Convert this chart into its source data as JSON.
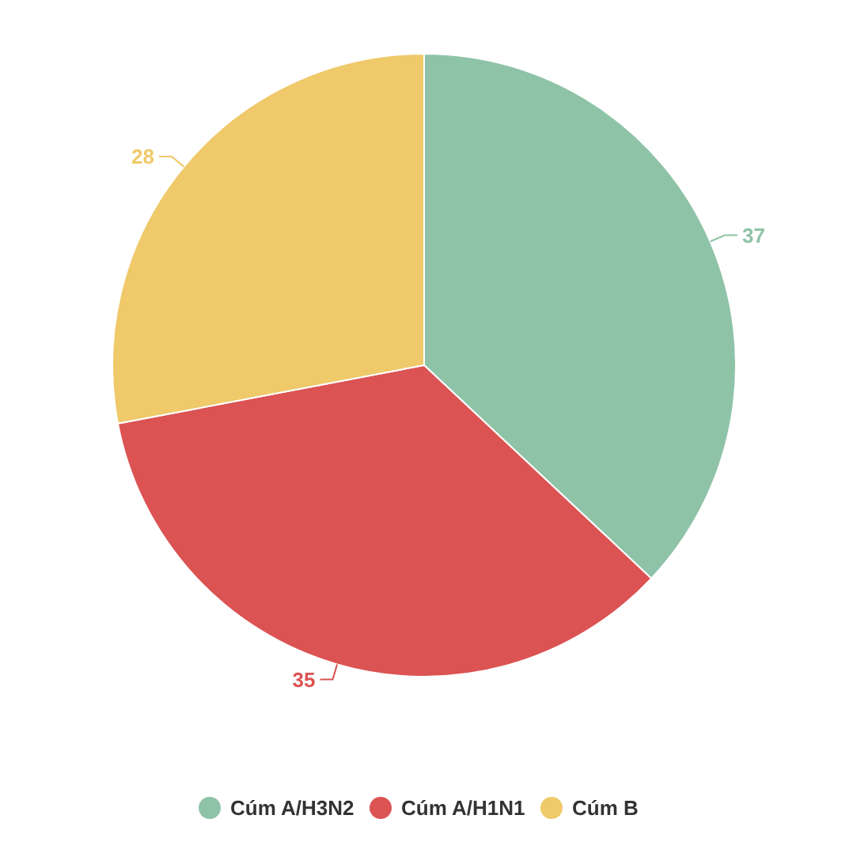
{
  "chart_data": {
    "type": "pie",
    "categories": [
      "Cúm A/H3N2",
      "Cúm A/H1N1",
      "Cúm B"
    ],
    "values": [
      37,
      35,
      28
    ],
    "colors": [
      "#8fc3a7",
      "#dc5353",
      "#efc96a"
    ],
    "data_labels": true,
    "legend": "bottom"
  }
}
